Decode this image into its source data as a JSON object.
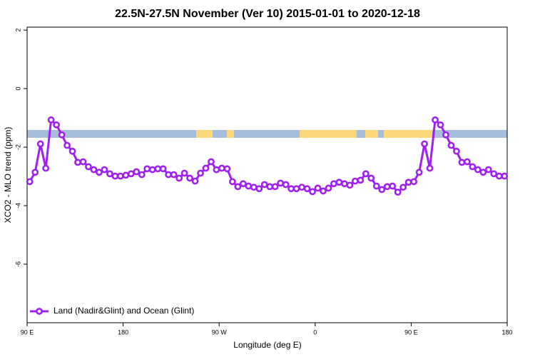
{
  "chart_data": {
    "type": "line",
    "title": "22.5N-27.5N November (Ver 10)   2015-01-01 to 2020-12-18",
    "xlabel": "Longitude (deg E)",
    "ylabel": "XCO2 - MLO trend (ppm)",
    "xlim": [
      90,
      540
    ],
    "xticks": [
      {
        "value": 90,
        "label": "90 E"
      },
      {
        "value": 180,
        "label": "180"
      },
      {
        "value": 270,
        "label": "90 W"
      },
      {
        "value": 360,
        "label": "0"
      },
      {
        "value": 450,
        "label": "90 E"
      },
      {
        "value": 540,
        "label": "180"
      }
    ],
    "ylim": [
      -8,
      2.1
    ],
    "yticks": [
      2,
      0,
      -2,
      -4,
      -6
    ],
    "legend": "bottom-left",
    "x": [
      92.5,
      97.5,
      102.5,
      107.5,
      112.5,
      117.5,
      122.5,
      127.5,
      132.5,
      137.5,
      142.5,
      147.5,
      152.5,
      157.5,
      162.5,
      167.5,
      172.5,
      177.5,
      182.5,
      187.5,
      192.5,
      197.5,
      202.5,
      207.5,
      212.5,
      217.5,
      222.5,
      227.5,
      232.5,
      237.5,
      242.5,
      247.5,
      252.5,
      257.5,
      262.5,
      267.5,
      272.5,
      277.5,
      282.5,
      287.5,
      292.5,
      297.5,
      302.5,
      307.5,
      312.5,
      317.5,
      322.5,
      327.5,
      332.5,
      337.5,
      342.5,
      347.5,
      352.5,
      357.5,
      362.5,
      367.5,
      372.5,
      377.5,
      382.5,
      387.5,
      392.5,
      397.5,
      402.5,
      407.5,
      412.5,
      417.5,
      422.5,
      427.5,
      432.5,
      437.5,
      442.5,
      447.5,
      452.5,
      457.5,
      462.5,
      467.5,
      472.5,
      477.5,
      482.5,
      487.5,
      492.5,
      497.5,
      502.5,
      507.5,
      512.5,
      517.5,
      522.5,
      527.5,
      532.5,
      537.5
    ],
    "series": [
      {
        "name": "Land (Nadir&Glint) and Ocean (Glint)",
        "color": "#a020f0",
        "values": [
          -3.18,
          -2.86,
          -1.89,
          -2.72,
          -1.07,
          -1.24,
          -1.58,
          -1.94,
          -2.14,
          -2.52,
          -2.5,
          -2.67,
          -2.77,
          -2.86,
          -2.77,
          -2.91,
          -2.99,
          -2.99,
          -2.96,
          -2.91,
          -2.84,
          -2.94,
          -2.74,
          -2.77,
          -2.74,
          -2.74,
          -2.94,
          -2.94,
          -3.06,
          -2.89,
          -3.06,
          -3.16,
          -2.89,
          -2.72,
          -2.5,
          -2.77,
          -2.72,
          -2.74,
          -3.18,
          -3.35,
          -3.25,
          -3.33,
          -3.37,
          -3.42,
          -3.28,
          -3.35,
          -3.35,
          -3.23,
          -3.28,
          -3.42,
          -3.42,
          -3.37,
          -3.42,
          -3.52,
          -3.4,
          -3.5,
          -3.4,
          -3.25,
          -3.2,
          -3.25,
          -3.3,
          -3.16,
          -3.13,
          -2.91,
          -3.06,
          -3.33,
          -3.45,
          -3.35,
          -3.33,
          -3.54,
          -3.37,
          -3.2,
          -3.18,
          -2.86,
          -1.89,
          -2.72,
          -1.07,
          -1.24,
          -1.58,
          -1.94,
          -2.14,
          -2.52,
          -2.5,
          -2.67,
          -2.77,
          -2.86,
          -2.77,
          -2.91,
          -2.99,
          -2.99
        ]
      }
    ]
  }
}
